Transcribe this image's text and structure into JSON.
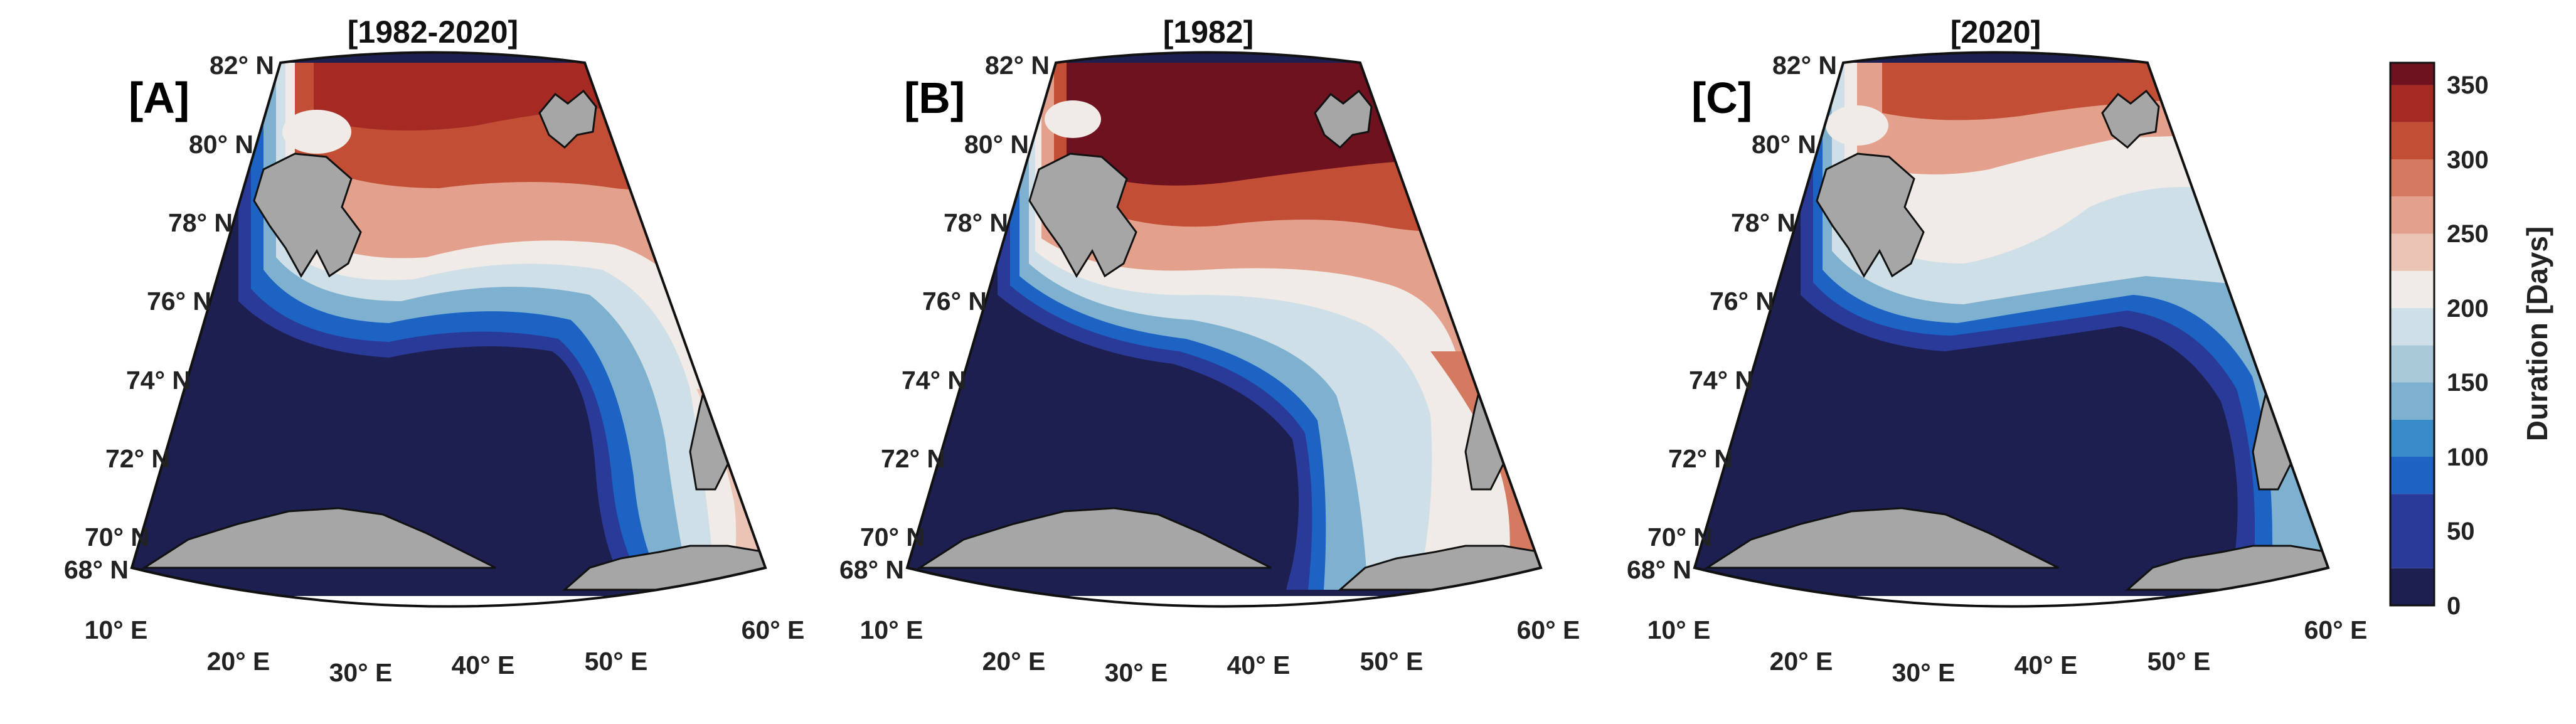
{
  "figure": {
    "panels": [
      {
        "letter": "[A]",
        "title": "[1982-2020]",
        "lat_labels": [
          "82° N",
          "80° N",
          "78° N",
          "76° N",
          "74° N",
          "72° N",
          "70° N",
          "68° N"
        ],
        "lon_labels": [
          "10° E",
          "20° E",
          "30° E",
          "40° E",
          "50° E",
          "60° E"
        ]
      },
      {
        "letter": "[B]",
        "title": "[1982]",
        "lat_labels": [
          "82° N",
          "80° N",
          "78° N",
          "76° N",
          "74° N",
          "72° N",
          "70° N",
          "68° N"
        ],
        "lon_labels": [
          "10° E",
          "20° E",
          "30° E",
          "40° E",
          "50° E",
          "60° E"
        ]
      },
      {
        "letter": "[C]",
        "title": "[2020]",
        "lat_labels": [
          "82° N",
          "80° N",
          "78° N",
          "76° N",
          "74° N",
          "72° N",
          "70° N",
          "68° N"
        ],
        "lon_labels": [
          "10° E",
          "20° E",
          "30° E",
          "40° E",
          "50° E",
          "60° E"
        ]
      }
    ],
    "colorbar": {
      "label": "Duration [Days]",
      "ticks": [
        "0",
        "50",
        "100",
        "150",
        "200",
        "250",
        "300",
        "350"
      ],
      "min": 0,
      "max": 365,
      "levels": [
        {
          "from": 0,
          "to": 25,
          "color": "#1c1f4f"
        },
        {
          "from": 25,
          "to": 75,
          "color": "#2a3a98"
        },
        {
          "from": 75,
          "to": 100,
          "color": "#1c63c4"
        },
        {
          "from": 100,
          "to": 125,
          "color": "#3a8bc9"
        },
        {
          "from": 125,
          "to": 150,
          "color": "#7db1cf"
        },
        {
          "from": 150,
          "to": 175,
          "color": "#a9c9d9"
        },
        {
          "from": 175,
          "to": 200,
          "color": "#cfdfe7"
        },
        {
          "from": 200,
          "to": 225,
          "color": "#f1ebe8"
        },
        {
          "from": 225,
          "to": 250,
          "color": "#ecc4b6"
        },
        {
          "from": 250,
          "to": 275,
          "color": "#e3a08c"
        },
        {
          "from": 275,
          "to": 300,
          "color": "#d47a61"
        },
        {
          "from": 300,
          "to": 325,
          "color": "#c14e35"
        },
        {
          "from": 325,
          "to": 350,
          "color": "#a52a23"
        },
        {
          "from": 350,
          "to": 365,
          "color": "#6e1220"
        }
      ]
    },
    "colors": {
      "land": "#a6a6a6",
      "open_water": "#1c1f4f",
      "ice_high": "#a52a23",
      "ice_mid": "#ecc4b6",
      "ice_low": "#7db1cf"
    }
  }
}
